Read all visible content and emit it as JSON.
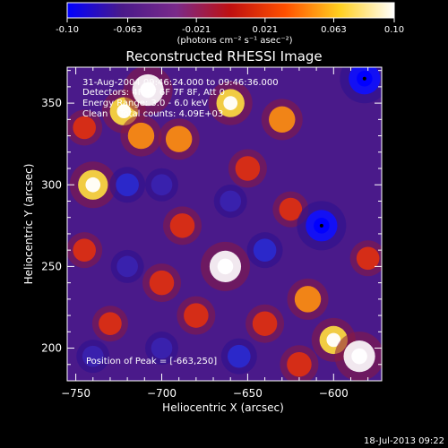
{
  "chart_data": {
    "type": "heatmap",
    "title": "Reconstructed RHESSI Image",
    "xlabel": "Heliocentric X (arcsec)",
    "ylabel": "Heliocentric Y (arcsec)",
    "xlim": [
      -755,
      -572
    ],
    "ylim": [
      180,
      372
    ],
    "x_ticks": [
      -750,
      -700,
      -650,
      -600
    ],
    "y_ticks": [
      200,
      250,
      300,
      350
    ],
    "colorbar": {
      "range": [
        -0.1,
        0.1
      ],
      "ticks": [
        "-0.10",
        "-0.063",
        "-0.021",
        "0.021",
        "0.063",
        "0.10"
      ],
      "units_label": "(photons cm⁻² s⁻¹ asec⁻²)",
      "colors": [
        "#0000ff",
        "#4a1a8a",
        "#7a2a8a",
        "#c01010",
        "#ff5000",
        "#ffd020",
        "#ffffff"
      ]
    },
    "annotations": [
      "31-Aug-2004 09:46:24.000 to 09:46:36.000",
      "Detectors: 4F 5F 6F 7F 8F, Att 0",
      "Energy Range: 3.0 - 6.0 keV",
      "Clean    Total counts: 4.09E+03"
    ],
    "peak_label": "Position of Peak = [-663,250]",
    "peak_position": [
      -663,
      250
    ],
    "markers": [
      [
        -607,
        275
      ],
      [
        -582,
        365
      ]
    ],
    "blobs": [
      {
        "x": -740,
        "y": 300,
        "v": 0.09
      },
      {
        "x": -722,
        "y": 345,
        "v": 0.08
      },
      {
        "x": -708,
        "y": 358,
        "v": 0.1
      },
      {
        "x": -712,
        "y": 330,
        "v": 0.07
      },
      {
        "x": -745,
        "y": 335,
        "v": 0.05
      },
      {
        "x": -690,
        "y": 328,
        "v": 0.07
      },
      {
        "x": -660,
        "y": 350,
        "v": 0.08
      },
      {
        "x": -630,
        "y": 340,
        "v": 0.07
      },
      {
        "x": -650,
        "y": 310,
        "v": 0.06
      },
      {
        "x": -688,
        "y": 275,
        "v": 0.06
      },
      {
        "x": -663,
        "y": 250,
        "v": 0.1
      },
      {
        "x": -700,
        "y": 240,
        "v": 0.06
      },
      {
        "x": -680,
        "y": 220,
        "v": 0.06
      },
      {
        "x": -640,
        "y": 215,
        "v": 0.06
      },
      {
        "x": -615,
        "y": 230,
        "v": 0.07
      },
      {
        "x": -600,
        "y": 205,
        "v": 0.08
      },
      {
        "x": -585,
        "y": 195,
        "v": 0.1
      },
      {
        "x": -620,
        "y": 190,
        "v": 0.06
      },
      {
        "x": -745,
        "y": 260,
        "v": 0.05
      },
      {
        "x": -730,
        "y": 215,
        "v": 0.05
      },
      {
        "x": -625,
        "y": 285,
        "v": 0.05
      },
      {
        "x": -580,
        "y": 255,
        "v": 0.05
      },
      {
        "x": -607,
        "y": 275,
        "v": -0.1
      },
      {
        "x": -582,
        "y": 365,
        "v": -0.1
      },
      {
        "x": -720,
        "y": 300,
        "v": -0.05
      },
      {
        "x": -700,
        "y": 300,
        "v": -0.04
      },
      {
        "x": -660,
        "y": 290,
        "v": -0.04
      },
      {
        "x": -640,
        "y": 260,
        "v": -0.05
      },
      {
        "x": -700,
        "y": 200,
        "v": -0.04
      },
      {
        "x": -655,
        "y": 195,
        "v": -0.05
      },
      {
        "x": -720,
        "y": 250,
        "v": -0.04
      },
      {
        "x": -740,
        "y": 195,
        "v": -0.04
      }
    ]
  },
  "footer": {
    "date": "18-Jul-2013 09:22"
  }
}
